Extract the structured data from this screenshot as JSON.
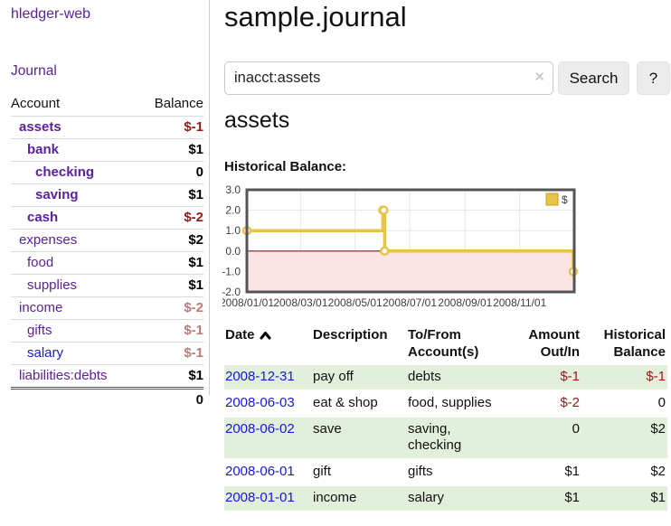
{
  "colors": {
    "purple": "#5b21a0",
    "blue": "#1717dd",
    "neg_strong": "#9d1717",
    "neg_soft": "#bd7a76",
    "row_green": "#e2efdb",
    "gold": "#e8c34a",
    "gold_border": "#c9a227",
    "pink": "#fce4e4",
    "pink_line": "#8b1a1a",
    "chart_border": "#545454",
    "grid": "#e7e7e7"
  },
  "sidebar": {
    "brand": "hledger-web",
    "journal_label": "Journal",
    "accounts_table": {
      "headers": {
        "account": "Account",
        "balance": "Balance"
      },
      "rows": [
        {
          "name": "assets",
          "depth": 1,
          "bold": true,
          "balance": "$-1",
          "neg": "strong"
        },
        {
          "name": "bank",
          "depth": 2,
          "bold": true,
          "balance": "$1"
        },
        {
          "name": "checking",
          "depth": 3,
          "bold": true,
          "balance": "0"
        },
        {
          "name": "saving",
          "depth": 3,
          "bold": true,
          "balance": "$1"
        },
        {
          "name": "cash",
          "depth": 2,
          "bold": true,
          "balance": "$-2",
          "neg": "strong"
        },
        {
          "name": "expenses",
          "depth": 1,
          "bold": false,
          "balance": "$2"
        },
        {
          "name": "food",
          "depth": 2,
          "bold": false,
          "balance": "$1"
        },
        {
          "name": "supplies",
          "depth": 2,
          "bold": false,
          "balance": "$1"
        },
        {
          "name": "income",
          "depth": 1,
          "bold": false,
          "balance": "$-2",
          "neg": "soft"
        },
        {
          "name": "gifts",
          "depth": 2,
          "bold": false,
          "balance": "$-1",
          "neg": "soft"
        },
        {
          "name": "salary",
          "depth": 2,
          "bold": false,
          "balance": "$-1",
          "neg": "soft",
          "link": "blue"
        },
        {
          "name": "liabilities:debts",
          "depth": 1,
          "bold": false,
          "balance": "$1"
        }
      ],
      "total": "0"
    }
  },
  "header": {
    "title": "sample.journal"
  },
  "search": {
    "value": "inacct:assets",
    "clear_icon": "✕",
    "button_label": "Search",
    "help_label": "?"
  },
  "account_page": {
    "title": "assets"
  },
  "chart_data": {
    "type": "line",
    "line_style": "step",
    "title": "Historical Balance:",
    "xlabel": "",
    "ylabel": "",
    "grid": true,
    "legend": {
      "label": "$",
      "position": "top-right"
    },
    "series": [
      {
        "name": "$",
        "x": [
          "2008-01-01",
          "2008-06-01",
          "2008-06-02",
          "2008-06-03",
          "2008-12-31"
        ],
        "values": [
          1,
          2,
          2,
          0,
          -1
        ]
      }
    ],
    "xrange": [
      "2008-01-01",
      "2009-01-01"
    ],
    "ylim": [
      -2,
      3
    ],
    "xticks": [
      {
        "date": "2008-01-01",
        "label": "2008/01/01"
      },
      {
        "date": "2008-03-01",
        "label": "2008/03/01"
      },
      {
        "date": "2008-05-01",
        "label": "2008/05/01"
      },
      {
        "date": "2008-07-01",
        "label": "2008/07/01"
      },
      {
        "date": "2008-09-01",
        "label": "2008/09/01"
      },
      {
        "date": "2008-11-01",
        "label": "2008/11/01"
      }
    ],
    "yticks": [
      {
        "v": 3,
        "label": "3.0"
      },
      {
        "v": 2,
        "label": "2.0"
      },
      {
        "v": 1,
        "label": "1.0"
      },
      {
        "v": 0,
        "label": "0.0"
      },
      {
        "v": -1,
        "label": "-1.0"
      },
      {
        "v": -2,
        "label": "-2.0"
      }
    ],
    "negative_region": true
  },
  "register": {
    "headers": {
      "date": "Date",
      "description": "Description",
      "accounts": "To/From Account(s)",
      "amount": "Amount Out/In",
      "balance": "Historical Balance"
    },
    "rows": [
      {
        "date": "2008-12-31",
        "description": "pay off",
        "accounts": "debts",
        "amount": "$-1",
        "amount_neg": true,
        "balance": "$-1",
        "balance_neg": true,
        "shade": true
      },
      {
        "date": "2008-06-03",
        "description": "eat & shop",
        "accounts": "food, supplies",
        "amount": "$-2",
        "amount_neg": true,
        "balance": "0",
        "balance_neg": false,
        "shade": false
      },
      {
        "date": "2008-06-02",
        "description": "save",
        "accounts": "saving, checking",
        "amount": "0",
        "amount_neg": false,
        "balance": "$2",
        "balance_neg": false,
        "shade": true
      },
      {
        "date": "2008-06-01",
        "description": "gift",
        "accounts": "gifts",
        "amount": "$1",
        "amount_neg": false,
        "balance": "$2",
        "balance_neg": false,
        "shade": false
      },
      {
        "date": "2008-01-01",
        "description": "income",
        "accounts": "salary",
        "amount": "$1",
        "amount_neg": false,
        "balance": "$1",
        "balance_neg": false,
        "shade": true
      }
    ]
  }
}
